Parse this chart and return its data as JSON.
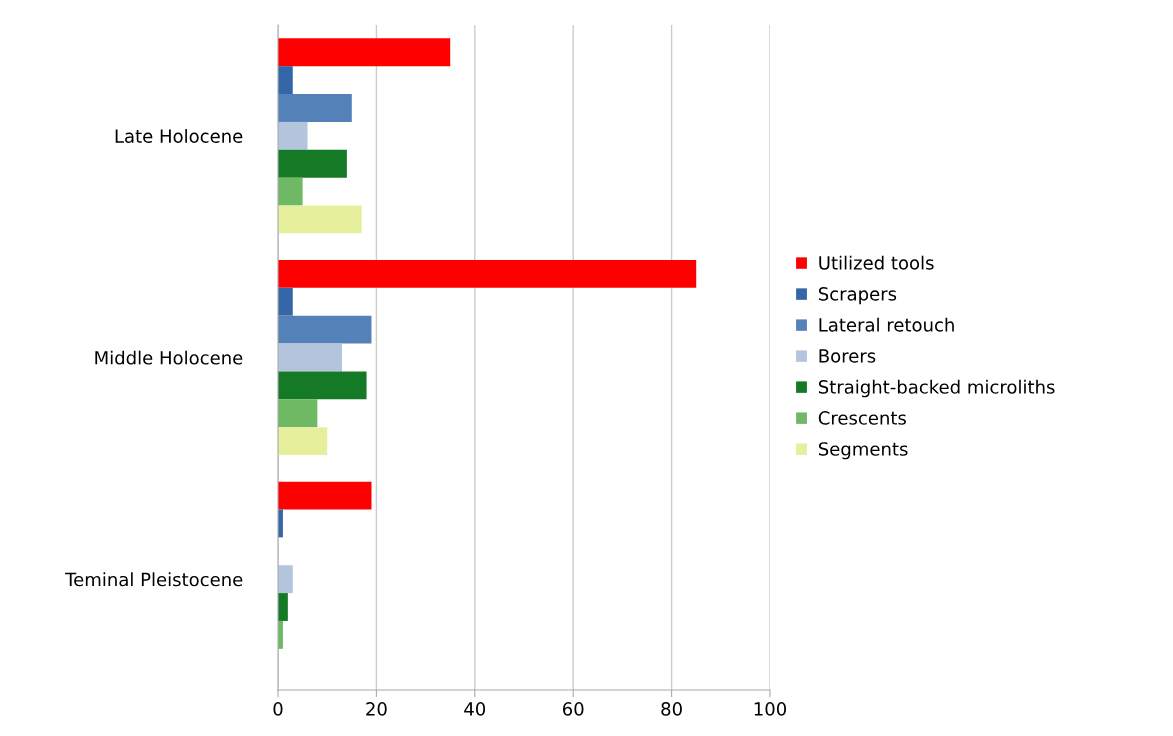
{
  "chart_data": {
    "type": "bar",
    "orientation": "horizontal",
    "categories": [
      "Late Holocene",
      "Middle Holocene",
      "Teminal Pleistocene"
    ],
    "series": [
      {
        "name": "Utilized tools",
        "color": "#ff0000",
        "values": [
          35,
          85,
          19
        ]
      },
      {
        "name": "Scrapers",
        "color": "#3566a8",
        "values": [
          3,
          3,
          1
        ]
      },
      {
        "name": "Lateral retouch",
        "color": "#5581b9",
        "values": [
          15,
          19,
          0
        ]
      },
      {
        "name": "Borers",
        "color": "#b3c4dd",
        "values": [
          6,
          13,
          3
        ]
      },
      {
        "name": "Straight-backed microliths",
        "color": "#157a25",
        "values": [
          14,
          18,
          2
        ]
      },
      {
        "name": "Crescents",
        "color": "#6fb965",
        "values": [
          5,
          8,
          1
        ]
      },
      {
        "name": "Segments",
        "color": "#e6ef9b",
        "values": [
          17,
          10,
          0
        ]
      }
    ],
    "xlim": [
      0,
      100
    ],
    "xticks": [
      0,
      20,
      40,
      60,
      80,
      100
    ],
    "grid": "x",
    "legend": "right"
  }
}
